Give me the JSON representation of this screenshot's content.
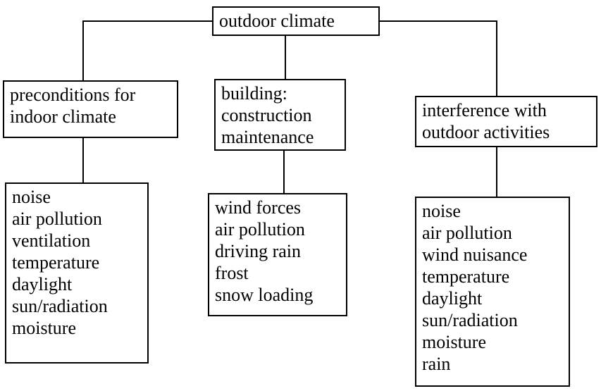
{
  "nodes": [
    {
      "lines": [
        "outdoor climate"
      ]
    },
    {
      "lines": [
        "preconditions for",
        "indoor climate"
      ]
    },
    {
      "lines": [
        "building:",
        "construction",
        "maintenance"
      ]
    },
    {
      "lines": [
        "interference with",
        "outdoor activities"
      ]
    },
    {
      "lines": [
        "noise",
        "air pollution",
        "ventilation",
        "temperature",
        "daylight",
        "sun/radiation",
        "moisture"
      ]
    },
    {
      "lines": [
        "wind forces",
        "air pollution",
        "driving rain",
        "frost",
        "snow loading"
      ]
    },
    {
      "lines": [
        "noise",
        "air pollution",
        "wind nuisance",
        "temperature",
        "daylight",
        "sun/radiation",
        "moisture",
        "rain"
      ]
    }
  ]
}
